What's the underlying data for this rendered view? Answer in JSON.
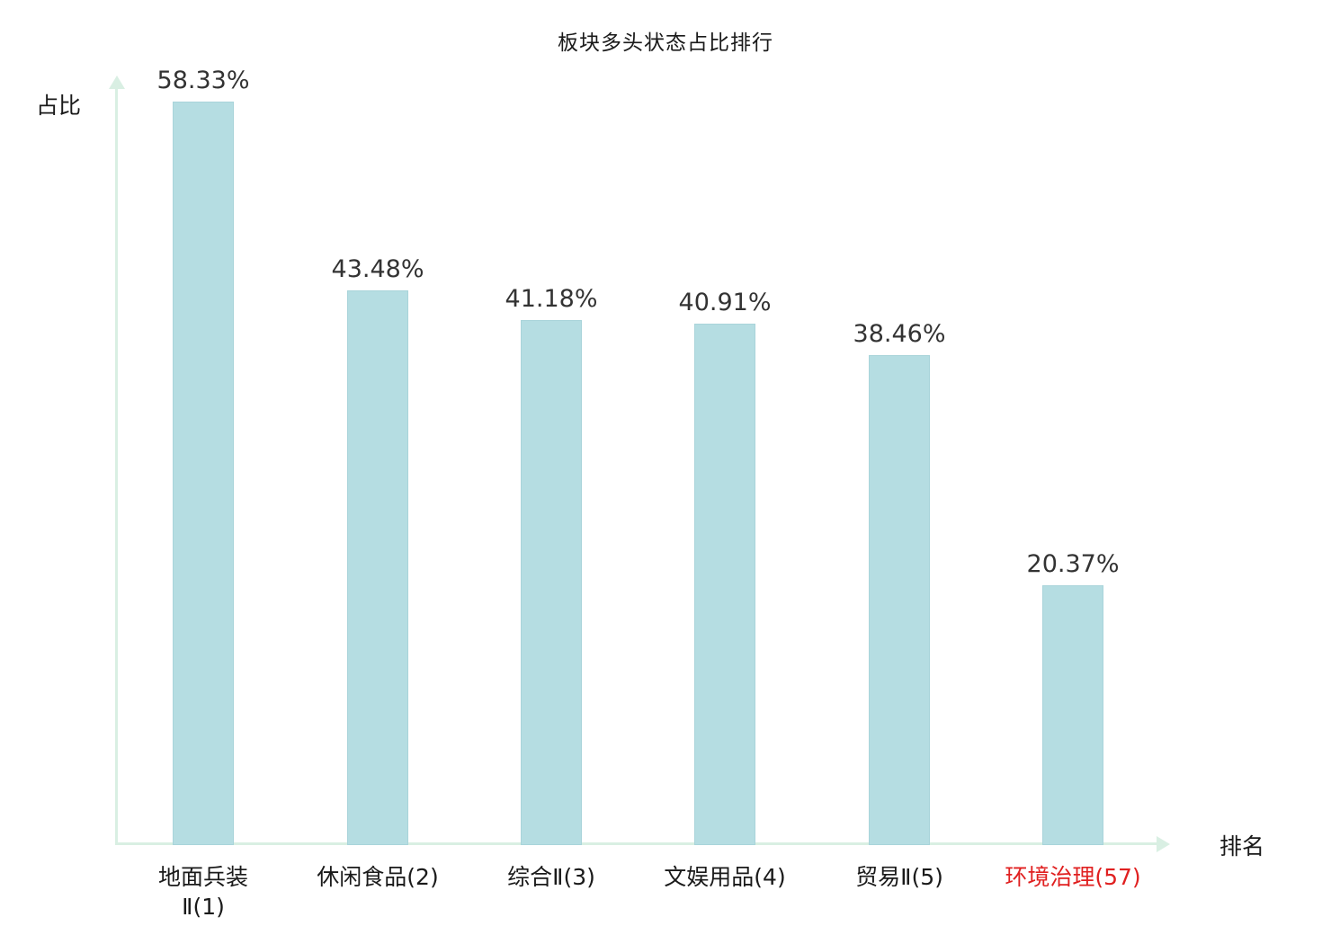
{
  "chart_data": {
    "type": "bar",
    "title": "板块多头状态占比排行",
    "ylabel": "占比",
    "xlabel": "排名",
    "categories": [
      "地面兵装\nⅡ(1)",
      "休闲食品(2)",
      "综合Ⅱ(3)",
      "文娱用品(4)",
      "贸易Ⅱ(5)",
      "环境治理(57)"
    ],
    "values": [
      58.33,
      43.48,
      41.18,
      40.91,
      38.46,
      20.37
    ],
    "value_labels": [
      "58.33%",
      "43.48%",
      "41.18%",
      "40.91%",
      "38.46%",
      "20.37%"
    ],
    "ylim": [
      0,
      60
    ],
    "grid": false,
    "legend": "none",
    "bar_color": "#b5dde2",
    "bar_border_color": "#a9d4da",
    "axis_color": "#d9efe3",
    "highlight_index": 5,
    "highlight_color": "#e02020"
  }
}
